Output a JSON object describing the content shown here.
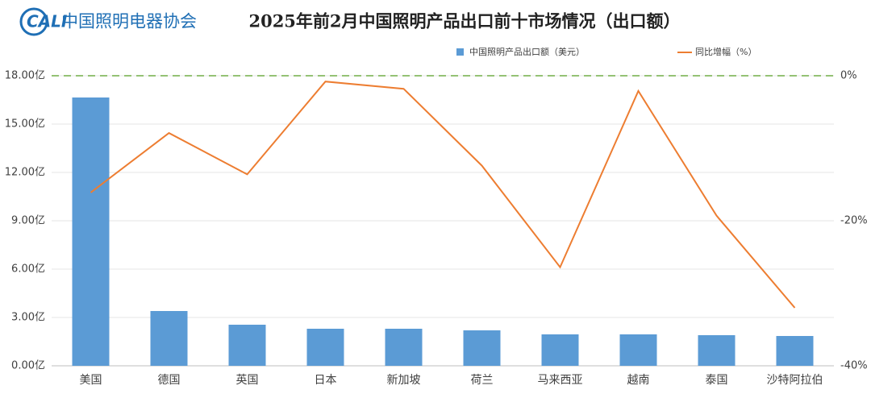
{
  "logo": "CALI",
  "organization": "中国照明电器协会",
  "chart_data": {
    "type": "bar-line",
    "title": "2025年前2月中国照明产品出口前十市场情况（出口额）",
    "categories": [
      "美国",
      "德国",
      "英国",
      "日本",
      "新加坡",
      "荷兰",
      "马来西亚",
      "越南",
      "泰国",
      "沙特阿拉伯"
    ],
    "series": [
      {
        "name": "中国照明产品出口额（美元）",
        "type": "bar",
        "color": "#5b9bd5",
        "values": [
          16.65,
          3.4,
          2.55,
          2.3,
          2.3,
          2.2,
          1.95,
          1.95,
          1.9,
          1.85
        ]
      },
      {
        "name": "同比增幅（%）",
        "type": "line",
        "axis": "y2",
        "color": "#ed7d31",
        "values": [
          -16.1,
          -7.9,
          -13.6,
          -0.8,
          -1.8,
          -12.4,
          -26.4,
          -2.1,
          -19.3,
          -32
        ]
      }
    ],
    "ylim": [
      0,
      18
    ],
    "yticks": [
      {
        "value": 0,
        "label": "0.00亿"
      },
      {
        "value": 3,
        "label": "3.00亿"
      },
      {
        "value": 6,
        "label": "6.00亿"
      },
      {
        "value": 9,
        "label": "9.00亿"
      },
      {
        "value": 12,
        "label": "12.00亿"
      },
      {
        "value": 15,
        "label": "15.00亿"
      },
      {
        "value": 18,
        "label": "18.00亿"
      }
    ],
    "y2lim": [
      -40,
      0
    ],
    "y2ticks": [
      {
        "value": 0,
        "label": "0%"
      },
      {
        "value": -20,
        "label": "-20%"
      },
      {
        "value": -40,
        "label": "-40%"
      }
    ],
    "grid": true,
    "legend": "top"
  }
}
